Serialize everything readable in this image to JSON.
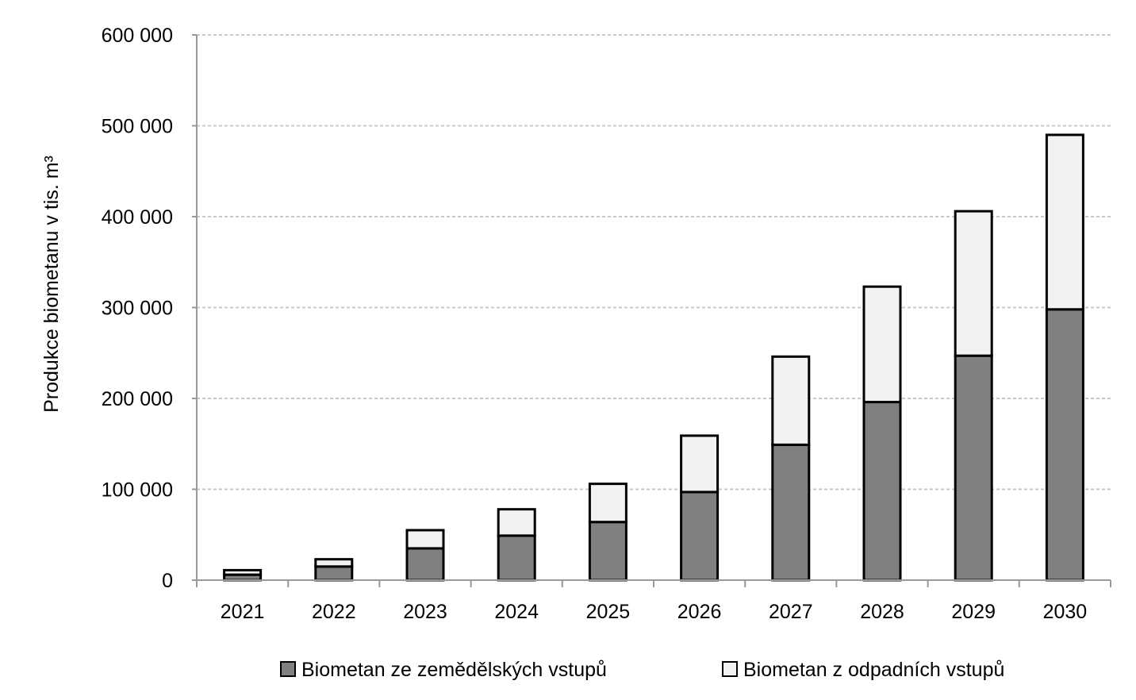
{
  "chart_data": {
    "type": "bar",
    "stacked": true,
    "categories": [
      "2021",
      "2022",
      "2023",
      "2024",
      "2025",
      "2026",
      "2027",
      "2028",
      "2029",
      "2030"
    ],
    "series": [
      {
        "name": "Biometan ze zemědělských vstupů",
        "color": "#808080",
        "values": [
          6000,
          15000,
          35000,
          49000,
          64000,
          97000,
          149000,
          196000,
          247000,
          298000
        ]
      },
      {
        "name": "Biometan z odpadních vstupů",
        "color": "#f2f2f2",
        "values": [
          5000,
          8000,
          20000,
          29000,
          42000,
          62000,
          97000,
          127000,
          159000,
          192000
        ]
      }
    ],
    "ylabel": "Produkce biometanu v tis. m³",
    "xlabel": "",
    "ylim": [
      0,
      600000
    ],
    "yticks": [
      0,
      100000,
      200000,
      300000,
      400000,
      500000,
      600000
    ],
    "ytick_labels": [
      "0",
      "100 000",
      "200 000",
      "300 000",
      "400 000",
      "500 000",
      "600 000"
    ],
    "grid": true,
    "legend_position": "bottom"
  }
}
